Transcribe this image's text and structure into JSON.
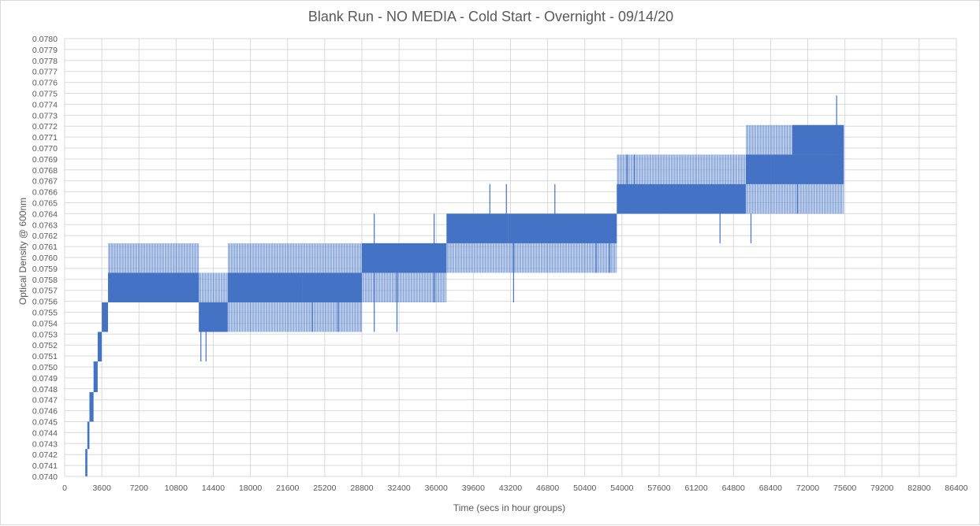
{
  "chart_data": {
    "type": "line",
    "title": "Blank Run - NO MEDIA - Cold Start - Overnight - 09/14/20",
    "xlabel": "Time  (secs in hour groups)",
    "ylabel": "Optical Density @ 600nm",
    "xlim": [
      0,
      86400
    ],
    "ylim": [
      0.074,
      0.078
    ],
    "x_ticks": [
      0,
      3600,
      7200,
      10800,
      14400,
      18000,
      21600,
      25200,
      28800,
      32400,
      36000,
      39600,
      43200,
      46800,
      50400,
      54000,
      57600,
      61200,
      64800,
      68400,
      72000,
      75600,
      79200,
      82800,
      86400
    ],
    "y_tick_step": 0.0001,
    "y_tick_decimals": 4,
    "grid": true,
    "color": "#4472c4",
    "series": [
      {
        "bands": [
          {
            "x": [
              2000,
              2200
            ],
            "y": [
              0.074,
              0.07425
            ]
          },
          {
            "x": [
              2200,
              2400
            ],
            "y": [
              0.07425,
              0.0745
            ]
          },
          {
            "x": [
              2400,
              2800
            ],
            "y": [
              0.0745,
              0.07477
            ]
          },
          {
            "x": [
              2800,
              3200
            ],
            "y": [
              0.07477,
              0.07505
            ]
          },
          {
            "x": [
              3200,
              3600
            ],
            "y": [
              0.07505,
              0.07532
            ]
          },
          {
            "x": [
              3600,
              4200
            ],
            "y": [
              0.07532,
              0.07559
            ]
          },
          {
            "x": [
              4200,
              13000
            ],
            "y": [
              0.07559,
              0.07586
            ]
          },
          {
            "x": [
              13000,
              15800
            ],
            "y": [
              0.07532,
              0.07559
            ]
          },
          {
            "x": [
              15800,
              23000
            ],
            "y": [
              0.07559,
              0.07586
            ]
          },
          {
            "x": [
              23000,
              28800
            ],
            "y": [
              0.07559,
              0.07586
            ]
          },
          {
            "x": [
              28800,
              37000
            ],
            "y": [
              0.07586,
              0.07613
            ]
          },
          {
            "x": [
              37000,
              43000
            ],
            "y": [
              0.07613,
              0.0764
            ]
          },
          {
            "x": [
              43000,
              53500
            ],
            "y": [
              0.07613,
              0.0764
            ]
          },
          {
            "x": [
              53500,
              66000
            ],
            "y": [
              0.0764,
              0.07667
            ]
          },
          {
            "x": [
              66000,
              68400
            ],
            "y": [
              0.07667,
              0.07694
            ]
          },
          {
            "x": [
              68400,
              75500
            ],
            "y": [
              0.07667,
              0.07694
            ]
          },
          {
            "x": [
              70500,
              75500
            ],
            "y": [
              0.07694,
              0.07721
            ]
          }
        ],
        "wide_bands": [
          {
            "x": [
              4200,
              13000
            ],
            "y": [
              0.07559,
              0.07613
            ]
          },
          {
            "x": [
              13000,
              15800
            ],
            "y": [
              0.07532,
              0.07586
            ]
          },
          {
            "x": [
              15800,
              28800
            ],
            "y": [
              0.07532,
              0.07613
            ]
          },
          {
            "x": [
              28800,
              37000
            ],
            "y": [
              0.07559,
              0.07613
            ]
          },
          {
            "x": [
              37000,
              53500
            ],
            "y": [
              0.07586,
              0.0764
            ]
          },
          {
            "x": [
              53500,
              66000
            ],
            "y": [
              0.0764,
              0.07694
            ]
          },
          {
            "x": [
              66000,
              75500
            ],
            "y": [
              0.0764,
              0.07721
            ]
          }
        ],
        "spikes": [
          {
            "x": 13200,
            "y": [
              0.07505,
              0.07559
            ]
          },
          {
            "x": 13700,
            "y": [
              0.07505,
              0.07559
            ]
          },
          {
            "x": 24000,
            "y": [
              0.07532,
              0.07586
            ]
          },
          {
            "x": 26500,
            "y": [
              0.07532,
              0.07586
            ]
          },
          {
            "x": 30000,
            "y": [
              0.07532,
              0.0764
            ]
          },
          {
            "x": 32200,
            "y": [
              0.07532,
              0.07613
            ]
          },
          {
            "x": 35800,
            "y": [
              0.07559,
              0.0764
            ]
          },
          {
            "x": 41200,
            "y": [
              0.0764,
              0.07667
            ]
          },
          {
            "x": 42800,
            "y": [
              0.0764,
              0.07667
            ]
          },
          {
            "x": 43500,
            "y": [
              0.07559,
              0.0764
            ]
          },
          {
            "x": 47500,
            "y": [
              0.0764,
              0.07667
            ]
          },
          {
            "x": 51500,
            "y": [
              0.07586,
              0.0764
            ]
          },
          {
            "x": 52800,
            "y": [
              0.07586,
              0.0764
            ]
          },
          {
            "x": 54500,
            "y": [
              0.07667,
              0.07694
            ]
          },
          {
            "x": 55200,
            "y": [
              0.07667,
              0.07694
            ]
          },
          {
            "x": 63500,
            "y": [
              0.07613,
              0.0764
            ]
          },
          {
            "x": 66500,
            "y": [
              0.07613,
              0.0764
            ]
          },
          {
            "x": 71000,
            "y": [
              0.0764,
              0.07667
            ]
          },
          {
            "x": 74800,
            "y": [
              0.07694,
              0.07748
            ]
          },
          {
            "x": 75200,
            "y": [
              0.07667,
              0.07721
            ]
          }
        ]
      }
    ]
  }
}
